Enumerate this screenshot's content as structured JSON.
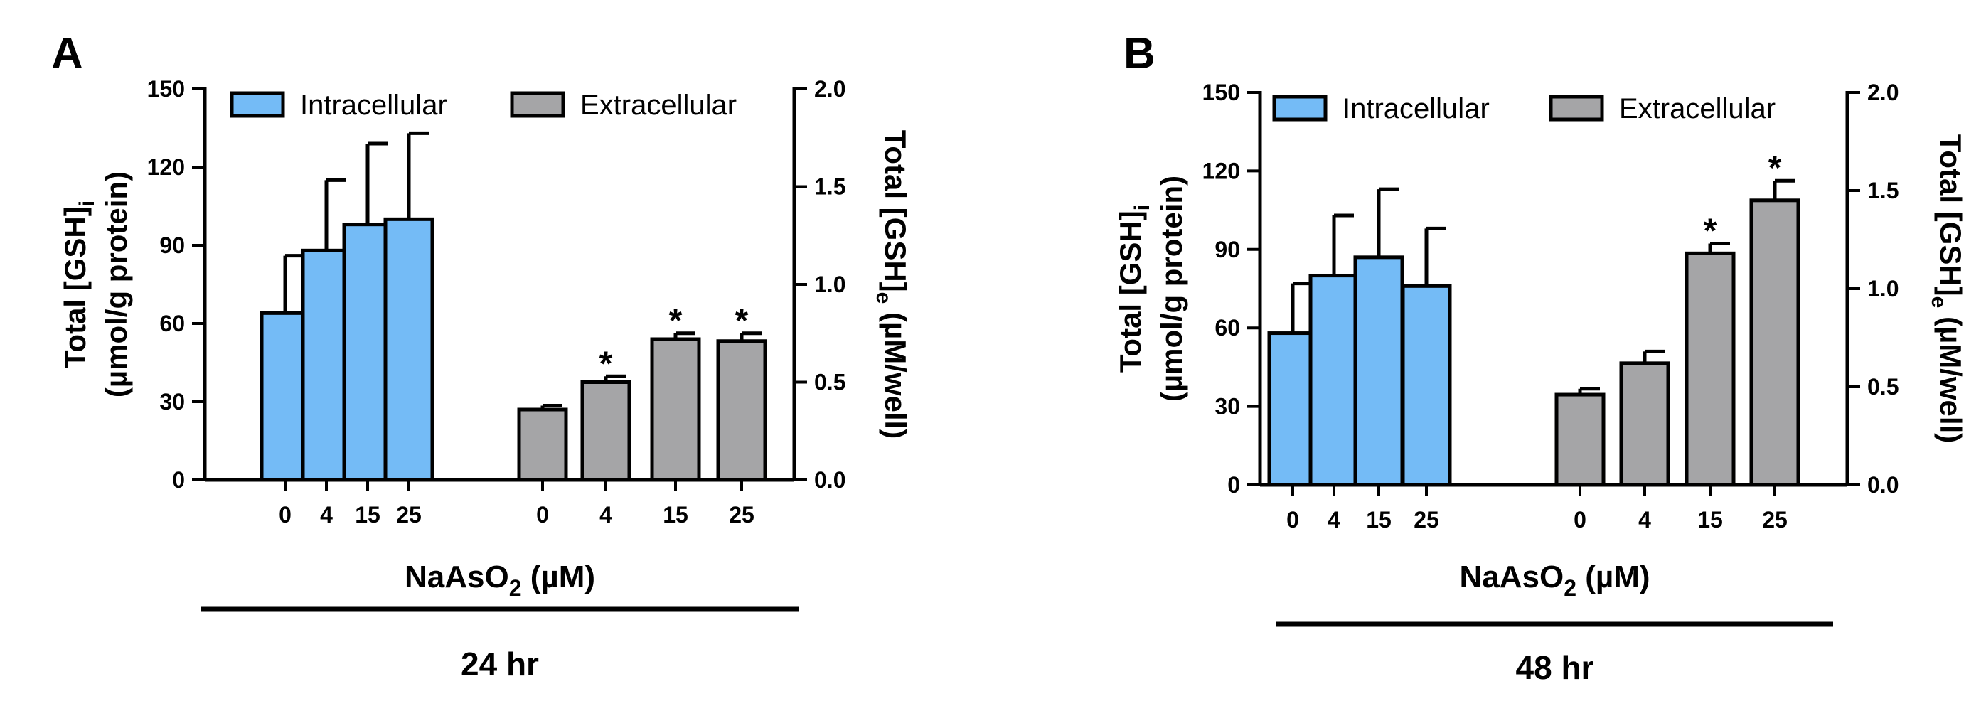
{
  "chart_data": [
    {
      "type": "bar",
      "panel_label": "A",
      "time_label": "24 hr",
      "xlabel": "NaAsO",
      "xlabel_sub": "2",
      "xlabel_suffix": " (µM)",
      "categories": [
        "0",
        "4",
        "15",
        "25"
      ],
      "left_axis": {
        "label_line1_main": "Total [GSH]",
        "label_line1_sub": "i",
        "label_line2": "(µmol/g protein)",
        "ylim": [
          0,
          150
        ],
        "ticks": [
          "0",
          "30",
          "60",
          "90",
          "120",
          "150"
        ]
      },
      "right_axis": {
        "label_main": "Total [GSH]",
        "label_sub": "e",
        "label_suffix": " (µM/well)",
        "ylim": [
          0,
          2.0
        ],
        "ticks": [
          "0.0",
          "0.5",
          "1.0",
          "1.5",
          "2.0"
        ]
      },
      "legend": [
        "Intracellular",
        "Extracellular"
      ],
      "series": [
        {
          "name": "Intracellular",
          "axis": "left",
          "color": "#74BBF6",
          "values": [
            64,
            88,
            98,
            100
          ],
          "errors": [
            22,
            27,
            31,
            33
          ],
          "significant": [
            false,
            false,
            false,
            false
          ]
        },
        {
          "name": "Extracellular",
          "axis": "right",
          "color": "#A5A5A7",
          "values": [
            0.36,
            0.5,
            0.72,
            0.71
          ],
          "errors": [
            0.02,
            0.03,
            0.03,
            0.04
          ],
          "significant": [
            false,
            true,
            true,
            true
          ]
        }
      ],
      "significance_marker": "*"
    },
    {
      "type": "bar",
      "panel_label": "B",
      "time_label": "48 hr",
      "xlabel": "NaAsO",
      "xlabel_sub": "2",
      "xlabel_suffix": " (µM)",
      "categories": [
        "0",
        "4",
        "15",
        "25"
      ],
      "left_axis": {
        "label_line1_main": "Total [GSH]",
        "label_line1_sub": "i",
        "label_line2": "(µmol/g protein)",
        "ylim": [
          0,
          150
        ],
        "ticks": [
          "0",
          "30",
          "60",
          "90",
          "120",
          "150"
        ]
      },
      "right_axis": {
        "label_main": "Total [GSH]",
        "label_sub": "e",
        "label_suffix": " (µM/well)",
        "ylim": [
          0,
          2.0
        ],
        "ticks": [
          "0.0",
          "0.5",
          "1.0",
          "1.5",
          "2.0"
        ]
      },
      "legend": [
        "Intracellular",
        "Extracellular"
      ],
      "series": [
        {
          "name": "Intracellular",
          "axis": "left",
          "color": "#74BBF6",
          "values": [
            58,
            80,
            87,
            76
          ],
          "errors": [
            19,
            23,
            26,
            22
          ],
          "significant": [
            false,
            false,
            false,
            false
          ]
        },
        {
          "name": "Extracellular",
          "axis": "right",
          "color": "#A5A5A7",
          "values": [
            0.46,
            0.62,
            1.18,
            1.45
          ],
          "errors": [
            0.03,
            0.06,
            0.05,
            0.1
          ],
          "significant": [
            false,
            false,
            true,
            true
          ]
        }
      ],
      "significance_marker": "*"
    }
  ]
}
